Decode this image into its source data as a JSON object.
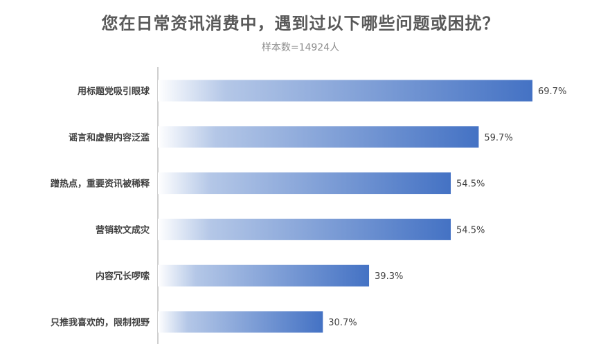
{
  "chart_data": {
    "type": "bar",
    "orientation": "horizontal",
    "title": "您在日常资讯消费中，遇到过以下哪些问题或困扰？",
    "subtitle": "样本数=14924人",
    "categories": [
      "用标题党吸引眼球",
      "谣言和虚假内容泛滥",
      "蹭热点，重要资讯被稀释",
      "营销软文成灾",
      "内容冗长啰嗦",
      "只推我喜欢的，限制视野"
    ],
    "values": [
      69.7,
      59.7,
      54.5,
      54.5,
      39.3,
      30.7
    ],
    "value_labels": [
      "69.7%",
      "59.7%",
      "54.5%",
      "54.5%",
      "39.3%",
      "30.7%"
    ],
    "xlim": [
      0,
      100
    ],
    "grid": false,
    "legend": "none",
    "colors": {
      "bar_start": "#ffffff",
      "bar_end": "#4472c4",
      "axis": "#bfbfbf",
      "text": "#404040",
      "title": "#595959"
    }
  }
}
